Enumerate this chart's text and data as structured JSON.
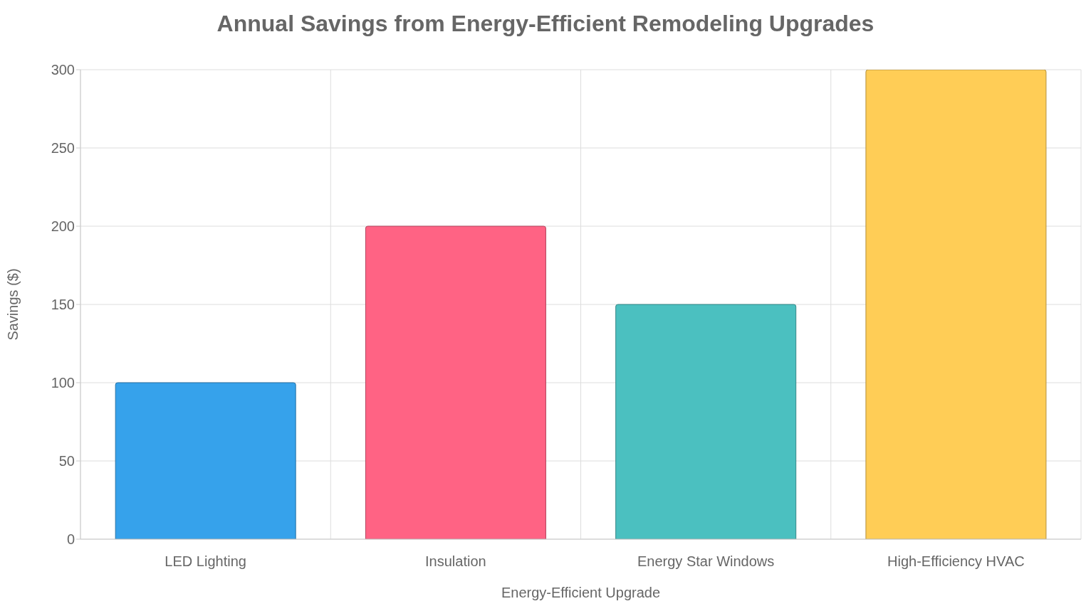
{
  "chart_data": {
    "type": "bar",
    "title": "Annual Savings from Energy-Efficient Remodeling Upgrades",
    "xlabel": "Energy-Efficient Upgrade",
    "ylabel": "Savings ($)",
    "categories": [
      "LED Lighting",
      "Insulation",
      "Energy Star Windows",
      "High-Efficiency HVAC"
    ],
    "values": [
      100,
      200,
      150,
      300
    ],
    "colors": [
      "#36a2eb",
      "#ff6384",
      "#4bc0c0",
      "#ffcd56"
    ],
    "ylim": [
      0,
      300
    ],
    "yticks": [
      0,
      50,
      100,
      150,
      200,
      250,
      300
    ],
    "grid": true,
    "legend": false
  }
}
